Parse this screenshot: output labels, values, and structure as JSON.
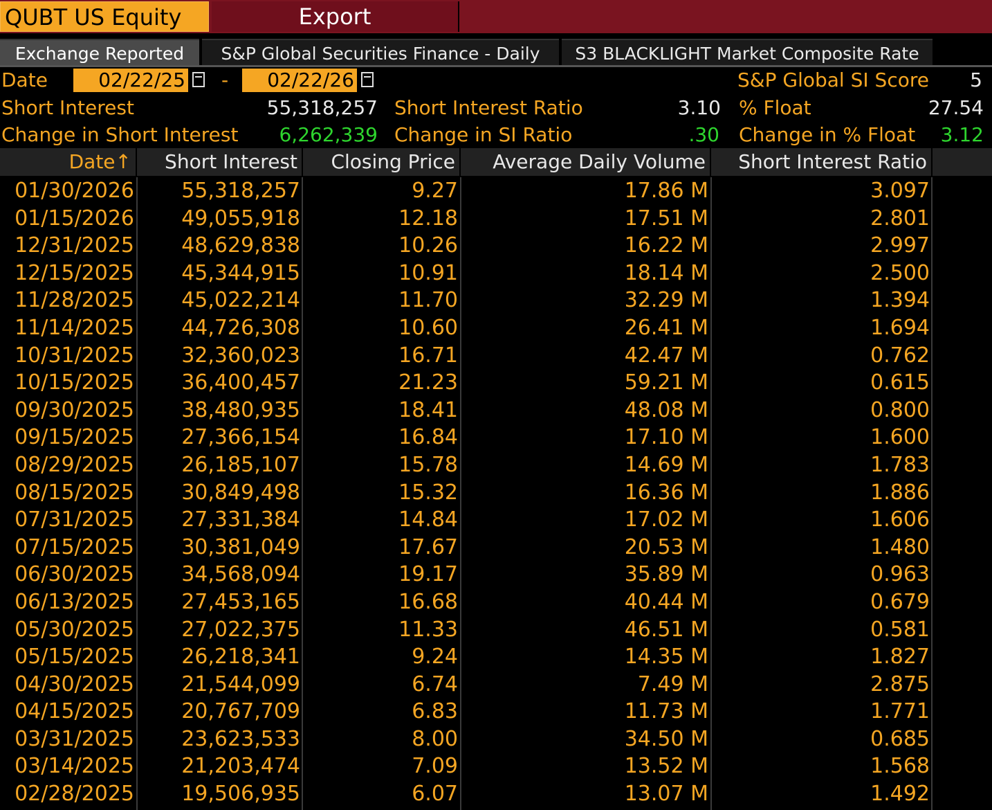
{
  "header": {
    "ticker": "QUBT US Equity",
    "export_label": "Export"
  },
  "tabs": [
    {
      "label": "Exchange Reported",
      "active": true
    },
    {
      "label": "S&P Global Securities Finance - Daily",
      "active": false
    },
    {
      "label": "S3 BLACKLIGHT Market Composite Rate",
      "active": false
    }
  ],
  "date_range": {
    "label": "Date",
    "start": "02/22/25",
    "sep": "-",
    "end": "02/22/26"
  },
  "summary": {
    "si_score_label": "S&P Global SI Score",
    "si_score": "5",
    "short_interest_label": "Short Interest",
    "short_interest": "55,318,257",
    "si_ratio_label": "Short Interest Ratio",
    "si_ratio": "3.10",
    "float_label": "% Float",
    "float": "27.54",
    "chg_si_label": "Change in Short Interest",
    "chg_si": "6,262,339",
    "chg_ratio_label": "Change in SI Ratio",
    "chg_ratio": ".30",
    "chg_float_label": "Change in % Float",
    "chg_float": "3.12"
  },
  "table": {
    "columns": [
      "Date",
      "Short Interest",
      "Closing Price",
      "Average Daily Volume",
      "Short Interest Ratio"
    ],
    "sort_indicator": "↑",
    "rows": [
      [
        "01/30/2026",
        "55,318,257",
        "9.27",
        "17.86 M",
        "3.097"
      ],
      [
        "01/15/2026",
        "49,055,918",
        "12.18",
        "17.51 M",
        "2.801"
      ],
      [
        "12/31/2025",
        "48,629,838",
        "10.26",
        "16.22 M",
        "2.997"
      ],
      [
        "12/15/2025",
        "45,344,915",
        "10.91",
        "18.14 M",
        "2.500"
      ],
      [
        "11/28/2025",
        "45,022,214",
        "11.70",
        "32.29 M",
        "1.394"
      ],
      [
        "11/14/2025",
        "44,726,308",
        "10.60",
        "26.41 M",
        "1.694"
      ],
      [
        "10/31/2025",
        "32,360,023",
        "16.71",
        "42.47 M",
        "0.762"
      ],
      [
        "10/15/2025",
        "36,400,457",
        "21.23",
        "59.21 M",
        "0.615"
      ],
      [
        "09/30/2025",
        "38,480,935",
        "18.41",
        "48.08 M",
        "0.800"
      ],
      [
        "09/15/2025",
        "27,366,154",
        "16.84",
        "17.10 M",
        "1.600"
      ],
      [
        "08/29/2025",
        "26,185,107",
        "15.78",
        "14.69 M",
        "1.783"
      ],
      [
        "08/15/2025",
        "30,849,498",
        "15.32",
        "16.36 M",
        "1.886"
      ],
      [
        "07/31/2025",
        "27,331,384",
        "14.84",
        "17.02 M",
        "1.606"
      ],
      [
        "07/15/2025",
        "30,381,049",
        "17.67",
        "20.53 M",
        "1.480"
      ],
      [
        "06/30/2025",
        "34,568,094",
        "19.17",
        "35.89 M",
        "0.963"
      ],
      [
        "06/13/2025",
        "27,453,165",
        "16.68",
        "40.44 M",
        "0.679"
      ],
      [
        "05/30/2025",
        "27,022,375",
        "11.33",
        "46.51 M",
        "0.581"
      ],
      [
        "05/15/2025",
        "26,218,341",
        "9.24",
        "14.35 M",
        "1.827"
      ],
      [
        "04/30/2025",
        "21,544,099",
        "6.74",
        "7.49 M",
        "2.875"
      ],
      [
        "04/15/2025",
        "20,767,709",
        "6.83",
        "11.73 M",
        "1.771"
      ],
      [
        "03/31/2025",
        "23,623,533",
        "8.00",
        "34.50 M",
        "0.685"
      ],
      [
        "03/14/2025",
        "21,203,474",
        "7.09",
        "13.52 M",
        "1.568"
      ],
      [
        "02/28/2025",
        "19,506,935",
        "6.07",
        "13.07 M",
        "1.492"
      ]
    ]
  },
  "colors": {
    "accent": "#f5a623",
    "header_red": "#7a1420",
    "positive": "#2ed52e"
  }
}
